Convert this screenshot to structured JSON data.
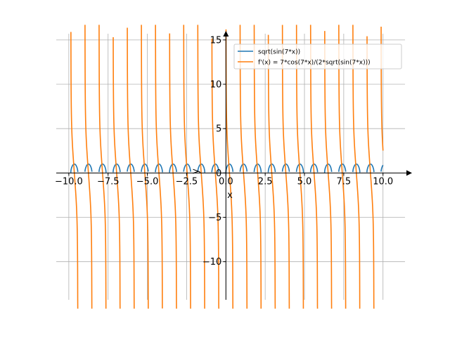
{
  "chart_data": {
    "type": "line",
    "title": "",
    "xlabel": "x",
    "ylabel": "y",
    "xlim": [
      -10.8,
      11.4
    ],
    "ylim": [
      -14.3,
      15.7
    ],
    "grid": true,
    "legend_position": "top-right",
    "x_ticks": [
      -10.0,
      -7.5,
      -5.0,
      -2.5,
      0.0,
      2.5,
      5.0,
      7.5,
      10.0
    ],
    "x_tick_labels": [
      "−10.0",
      "−7.5",
      "−5.0",
      "−2.5",
      "0.0",
      "2.5",
      "5.0",
      "7.5",
      "10.0"
    ],
    "y_ticks": [
      -10,
      -5,
      0,
      5,
      10,
      15
    ],
    "y_tick_labels": [
      "−10",
      "−5",
      "0",
      "5",
      "10",
      "15"
    ],
    "series": [
      {
        "name": "sqrt(sin(7*x))",
        "color": "#1f77b4",
        "expr": "f",
        "x_range": [
          -10.0,
          10.0
        ]
      },
      {
        "name": "f'(x) = 7*cos(7*x)/(2*sqrt(sin(7*x)))",
        "color": "#ff7f0e",
        "expr": "df",
        "x_range": [
          -10.0,
          10.0
        ]
      }
    ]
  }
}
